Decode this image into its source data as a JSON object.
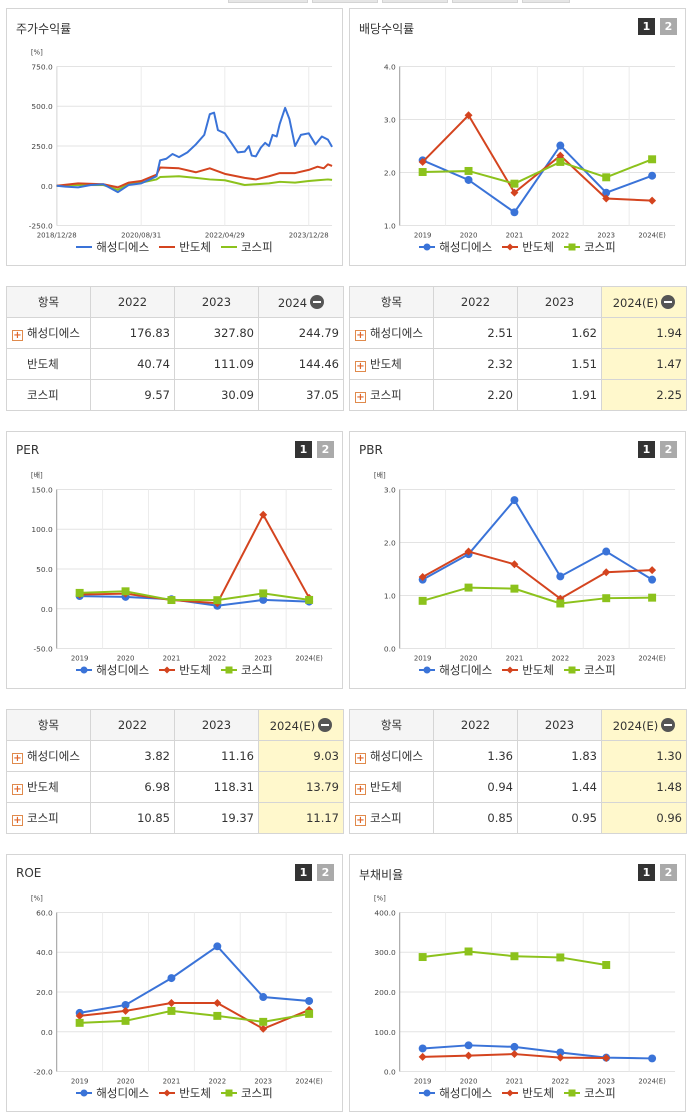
{
  "colors": {
    "s1": "#3a73d8",
    "s2": "#d4441f",
    "s3": "#8cc21c"
  },
  "legend": [
    "해성디에스",
    "반도체",
    "코스피"
  ],
  "panels": {
    "stock": {
      "title": "주가수익률"
    },
    "div": {
      "title": "배당수익률",
      "page1": "1",
      "page2": "2"
    },
    "per": {
      "title": "PER",
      "page1": "1",
      "page2": "2"
    },
    "pbr": {
      "title": "PBR",
      "page1": "1",
      "page2": "2"
    },
    "roe": {
      "title": "ROE",
      "page1": "1",
      "page2": "2"
    },
    "debt": {
      "title": "부채비율",
      "page1": "1",
      "page2": "2"
    }
  },
  "tables": {
    "stock": {
      "headers": [
        "항목",
        "2022",
        "2023",
        "2024"
      ],
      "rows": [
        {
          "label": "해성디에스",
          "plus": true,
          "v": [
            "176.83",
            "327.80",
            "244.79"
          ]
        },
        {
          "label": "반도체",
          "plus": false,
          "v": [
            "40.74",
            "111.09",
            "144.46"
          ]
        },
        {
          "label": "코스피",
          "plus": false,
          "v": [
            "9.57",
            "30.09",
            "37.05"
          ]
        }
      ]
    },
    "div": {
      "headers": [
        "항목",
        "2022",
        "2023",
        "2024(E)"
      ],
      "rows": [
        {
          "label": "해성디에스",
          "plus": true,
          "v": [
            "2.51",
            "1.62",
            "1.94"
          ]
        },
        {
          "label": "반도체",
          "plus": true,
          "v": [
            "2.32",
            "1.51",
            "1.47"
          ]
        },
        {
          "label": "코스피",
          "plus": true,
          "v": [
            "2.20",
            "1.91",
            "2.25"
          ]
        }
      ]
    },
    "per": {
      "headers": [
        "항목",
        "2022",
        "2023",
        "2024(E)"
      ],
      "rows": [
        {
          "label": "해성디에스",
          "plus": true,
          "v": [
            "3.82",
            "11.16",
            "9.03"
          ]
        },
        {
          "label": "반도체",
          "plus": true,
          "v": [
            "6.98",
            "118.31",
            "13.79"
          ]
        },
        {
          "label": "코스피",
          "plus": true,
          "v": [
            "10.85",
            "19.37",
            "11.17"
          ]
        }
      ]
    },
    "pbr": {
      "headers": [
        "항목",
        "2022",
        "2023",
        "2024(E)"
      ],
      "rows": [
        {
          "label": "해성디에스",
          "plus": true,
          "v": [
            "1.36",
            "1.83",
            "1.30"
          ]
        },
        {
          "label": "반도체",
          "plus": true,
          "v": [
            "0.94",
            "1.44",
            "1.48"
          ]
        },
        {
          "label": "코스피",
          "plus": true,
          "v": [
            "0.85",
            "0.95",
            "0.96"
          ]
        }
      ]
    }
  },
  "chart_data": [
    {
      "id": "stock",
      "type": "line",
      "title": "주가수익률",
      "unit": "[%]",
      "ylim": [
        -250,
        750
      ],
      "yticks": [
        -250,
        0,
        250,
        500,
        750
      ],
      "ytick_labels": [
        "-250.0",
        "0.0",
        "250.0",
        "500.0",
        "750.0"
      ],
      "xlim": [
        "2018-12-28",
        "2024-06-14"
      ],
      "xticks": [
        "2018/12/28",
        "2020/08/31",
        "2022/04/29",
        "2023/12/28"
      ],
      "xtick_dates": [
        "2018-12-28",
        "2020-08-31",
        "2022-04-29",
        "2023-12-28"
      ],
      "series": [
        {
          "name": "해성디에스",
          "points": [
            [
              "2018-12-28",
              0
            ],
            [
              "2019-03-01",
              -5
            ],
            [
              "2019-06-01",
              -10
            ],
            [
              "2019-09-01",
              5
            ],
            [
              "2019-12-01",
              10
            ],
            [
              "2020-03-15",
              -40
            ],
            [
              "2020-06-01",
              5
            ],
            [
              "2020-08-31",
              15
            ],
            [
              "2020-11-01",
              40
            ],
            [
              "2020-12-20",
              60
            ],
            [
              "2021-01-15",
              160
            ],
            [
              "2021-03-01",
              170
            ],
            [
              "2021-04-15",
              200
            ],
            [
              "2021-06-01",
              180
            ],
            [
              "2021-08-01",
              210
            ],
            [
              "2021-10-01",
              260
            ],
            [
              "2021-12-01",
              320
            ],
            [
              "2022-01-10",
              450
            ],
            [
              "2022-02-10",
              460
            ],
            [
              "2022-03-10",
              350
            ],
            [
              "2022-04-29",
              330
            ],
            [
              "2022-06-15",
              270
            ],
            [
              "2022-08-01",
              210
            ],
            [
              "2022-09-20",
              215
            ],
            [
              "2022-10-20",
              250
            ],
            [
              "2022-11-10",
              190
            ],
            [
              "2022-12-10",
              185
            ],
            [
              "2023-01-15",
              240
            ],
            [
              "2023-02-15",
              270
            ],
            [
              "2023-03-15",
              250
            ],
            [
              "2023-04-10",
              320
            ],
            [
              "2023-05-10",
              310
            ],
            [
              "2023-06-01",
              390
            ],
            [
              "2023-07-10",
              490
            ],
            [
              "2023-08-10",
              420
            ],
            [
              "2023-09-20",
              250
            ],
            [
              "2023-11-01",
              320
            ],
            [
              "2023-12-28",
              330
            ],
            [
              "2024-02-15",
              260
            ],
            [
              "2024-04-01",
              310
            ],
            [
              "2024-05-15",
              290
            ],
            [
              "2024-06-14",
              245
            ]
          ]
        },
        {
          "name": "반도체",
          "points": [
            [
              "2018-12-28",
              0
            ],
            [
              "2019-06-01",
              15
            ],
            [
              "2019-12-01",
              10
            ],
            [
              "2020-03-15",
              -10
            ],
            [
              "2020-06-01",
              20
            ],
            [
              "2020-08-31",
              30
            ],
            [
              "2020-12-20",
              70
            ],
            [
              "2021-01-15",
              115
            ],
            [
              "2021-06-01",
              110
            ],
            [
              "2021-10-01",
              85
            ],
            [
              "2022-01-10",
              110
            ],
            [
              "2022-04-29",
              75
            ],
            [
              "2022-09-20",
              50
            ],
            [
              "2022-12-10",
              40
            ],
            [
              "2023-03-15",
              60
            ],
            [
              "2023-06-01",
              80
            ],
            [
              "2023-09-20",
              80
            ],
            [
              "2023-12-28",
              100
            ],
            [
              "2024-03-01",
              120
            ],
            [
              "2024-04-15",
              110
            ],
            [
              "2024-05-15",
              135
            ],
            [
              "2024-06-14",
              125
            ]
          ]
        },
        {
          "name": "코스피",
          "points": [
            [
              "2018-12-28",
              0
            ],
            [
              "2019-06-01",
              5
            ],
            [
              "2019-12-01",
              5
            ],
            [
              "2020-03-15",
              -25
            ],
            [
              "2020-06-01",
              10
            ],
            [
              "2020-08-31",
              20
            ],
            [
              "2020-12-20",
              40
            ],
            [
              "2021-01-15",
              55
            ],
            [
              "2021-06-01",
              60
            ],
            [
              "2021-10-01",
              50
            ],
            [
              "2022-01-10",
              40
            ],
            [
              "2022-04-29",
              35
            ],
            [
              "2022-09-20",
              5
            ],
            [
              "2022-12-10",
              10
            ],
            [
              "2023-03-15",
              15
            ],
            [
              "2023-06-01",
              25
            ],
            [
              "2023-09-20",
              20
            ],
            [
              "2023-12-28",
              30
            ],
            [
              "2024-03-01",
              35
            ],
            [
              "2024-05-15",
              40
            ],
            [
              "2024-06-14",
              37
            ]
          ]
        }
      ]
    },
    {
      "id": "div",
      "type": "line",
      "title": "배당수익률",
      "categories": [
        "2019",
        "2020",
        "2021",
        "2022",
        "2023",
        "2024(E)"
      ],
      "ylim": [
        1,
        4
      ],
      "yticks": [
        1,
        2,
        3,
        4
      ],
      "ytick_labels": [
        "1.0",
        "2.0",
        "3.0",
        "4.0"
      ],
      "series": [
        {
          "name": "해성디에스",
          "values": [
            2.23,
            1.86,
            1.25,
            2.51,
            1.62,
            1.94
          ]
        },
        {
          "name": "반도체",
          "values": [
            2.2,
            3.08,
            1.62,
            2.32,
            1.51,
            1.47
          ]
        },
        {
          "name": "코스피",
          "values": [
            2.01,
            2.03,
            1.79,
            2.2,
            1.91,
            2.25
          ]
        }
      ]
    },
    {
      "id": "per",
      "type": "line",
      "title": "PER",
      "unit": "[배]",
      "categories": [
        "2019",
        "2020",
        "2021",
        "2022",
        "2023",
        "2024(E)"
      ],
      "ylim": [
        -50,
        150
      ],
      "yticks": [
        -50,
        0,
        50,
        100,
        150
      ],
      "ytick_labels": [
        "-50.0",
        "0.0",
        "50.0",
        "100.0",
        "150.0"
      ],
      "series": [
        {
          "name": "해성디에스",
          "values": [
            16,
            15,
            12,
            3.82,
            11.16,
            9.03
          ]
        },
        {
          "name": "반도체",
          "values": [
            18,
            19,
            11,
            6.98,
            118.31,
            13.79
          ]
        },
        {
          "name": "코스피",
          "values": [
            20,
            22,
            11,
            10.85,
            19.37,
            11.17
          ]
        }
      ]
    },
    {
      "id": "pbr",
      "type": "line",
      "title": "PBR",
      "unit": "[배]",
      "categories": [
        "2019",
        "2020",
        "2021",
        "2022",
        "2023",
        "2024(E)"
      ],
      "ylim": [
        0,
        3
      ],
      "yticks": [
        0,
        1,
        2,
        3
      ],
      "ytick_labels": [
        "0.0",
        "1.0",
        "2.0",
        "3.0"
      ],
      "series": [
        {
          "name": "해성디에스",
          "values": [
            1.3,
            1.78,
            2.8,
            1.36,
            1.83,
            1.3
          ]
        },
        {
          "name": "반도체",
          "values": [
            1.35,
            1.83,
            1.59,
            0.94,
            1.44,
            1.48
          ]
        },
        {
          "name": "코스피",
          "values": [
            0.9,
            1.15,
            1.13,
            0.85,
            0.95,
            0.96
          ]
        }
      ]
    },
    {
      "id": "roe",
      "type": "line",
      "title": "ROE",
      "unit": "[%]",
      "categories": [
        "2019",
        "2020",
        "2021",
        "2022",
        "2023",
        "2024(E)"
      ],
      "ylim": [
        -20,
        60
      ],
      "yticks": [
        -20,
        0,
        20,
        40,
        60
      ],
      "ytick_labels": [
        "-20.0",
        "0.0",
        "20.0",
        "40.0",
        "60.0"
      ],
      "series": [
        {
          "name": "해성디에스",
          "values": [
            9.5,
            13.5,
            27,
            43,
            17.5,
            15.5
          ]
        },
        {
          "name": "반도체",
          "values": [
            8,
            10.5,
            14.5,
            14.5,
            1.5,
            11
          ]
        },
        {
          "name": "코스피",
          "values": [
            4.5,
            5.5,
            10.5,
            8,
            5,
            9
          ]
        }
      ]
    },
    {
      "id": "debt",
      "type": "line",
      "title": "부채비율",
      "unit": "[%]",
      "categories": [
        "2019",
        "2020",
        "2021",
        "2022",
        "2023",
        "2024(E)"
      ],
      "ylim": [
        0,
        400
      ],
      "yticks": [
        0,
        100,
        200,
        300,
        400
      ],
      "ytick_labels": [
        "0.0",
        "100.0",
        "200.0",
        "300.0",
        "400.0"
      ],
      "series": [
        {
          "name": "해성디에스",
          "values": [
            58,
            66,
            62,
            48,
            35,
            33
          ]
        },
        {
          "name": "반도체",
          "values": [
            37,
            40,
            44,
            35,
            34,
            null
          ]
        },
        {
          "name": "코스피",
          "values": [
            288,
            302,
            290,
            287,
            268,
            null
          ]
        }
      ]
    }
  ]
}
